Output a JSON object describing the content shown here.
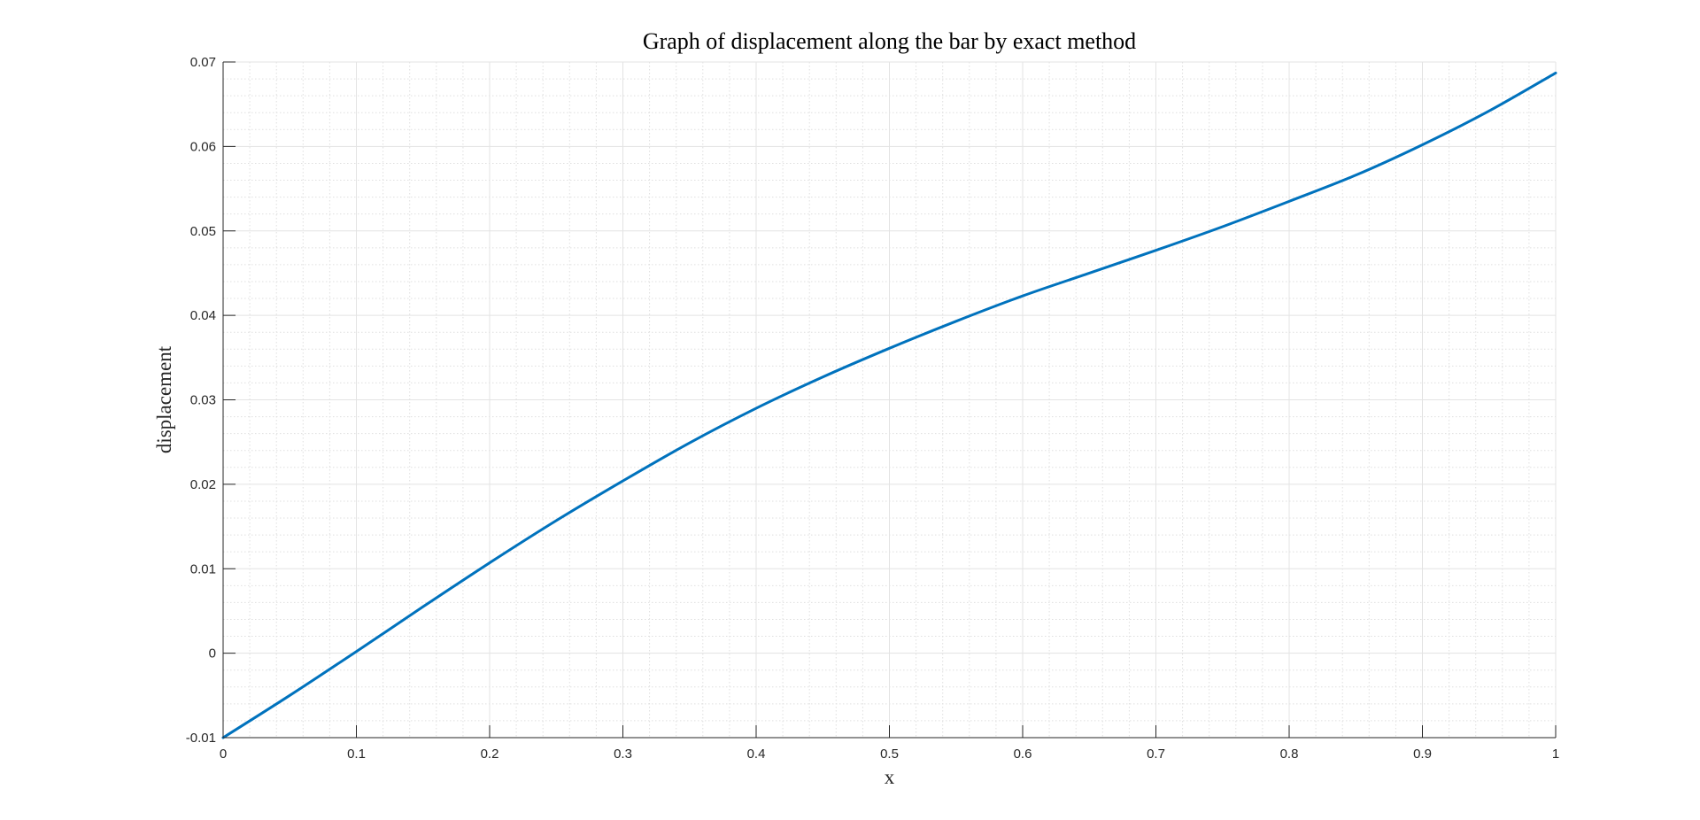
{
  "chart_data": {
    "type": "line",
    "title": "Graph of displacement along the bar by exact method",
    "xlabel": "x",
    "ylabel": "displacement",
    "xlim": [
      0,
      1
    ],
    "ylim": [
      -0.01,
      0.07
    ],
    "xticks": [
      0,
      0.1,
      0.2,
      0.3,
      0.4,
      0.5,
      0.6,
      0.7,
      0.8,
      0.9,
      1
    ],
    "xtick_labels": [
      "0",
      "0.1",
      "0.2",
      "0.3",
      "0.4",
      "0.5",
      "0.6",
      "0.7",
      "0.8",
      "0.9",
      "1"
    ],
    "yticks": [
      -0.01,
      0,
      0.01,
      0.02,
      0.03,
      0.04,
      0.05,
      0.06,
      0.07
    ],
    "ytick_labels": [
      "-0.01",
      "0",
      "0.01",
      "0.02",
      "0.03",
      "0.04",
      "0.05",
      "0.06",
      "0.07"
    ],
    "grid": true,
    "minor_grid": true,
    "series": [
      {
        "color": "#0072BD",
        "x": [
          0,
          0.05,
          0.1,
          0.15,
          0.2,
          0.25,
          0.3,
          0.35,
          0.4,
          0.45,
          0.5,
          0.55,
          0.6,
          0.65,
          0.7,
          0.75,
          0.8,
          0.85,
          0.9,
          0.95,
          1.0
        ],
        "y": [
          -0.01,
          -0.005,
          0.0002,
          0.0055,
          0.0107,
          0.0157,
          0.0204,
          0.0249,
          0.029,
          0.0327,
          0.0361,
          0.0393,
          0.0423,
          0.045,
          0.0477,
          0.0505,
          0.0535,
          0.0566,
          0.0602,
          0.0642,
          0.0687
        ]
      }
    ]
  }
}
